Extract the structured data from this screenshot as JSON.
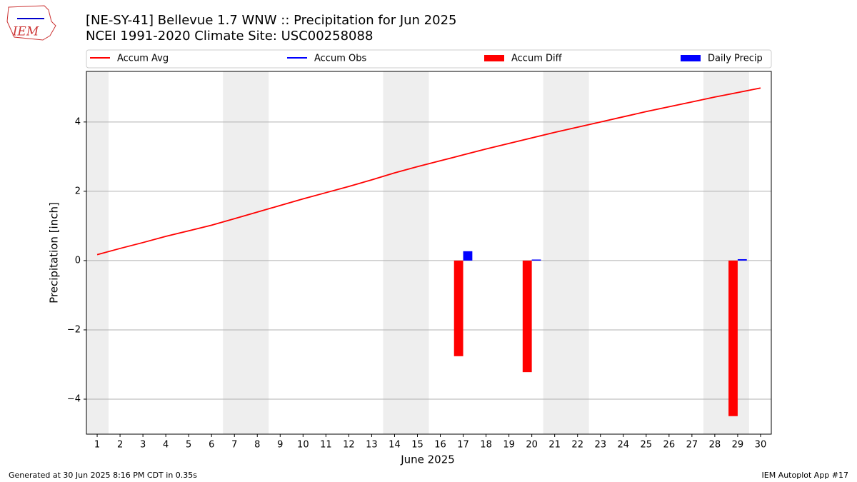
{
  "logo_text": "IEM",
  "chart_data": {
    "type": "line-bar",
    "title": "[NE-SY-41] Bellevue 1.7 WNW :: Precipitation for Jun 2025",
    "subtitle": "NCEI 1991-2020 Climate Site: USC00258088",
    "xlabel": "June 2025",
    "ylabel": "Precipitation [inch]",
    "x": [
      1,
      2,
      3,
      4,
      5,
      6,
      7,
      8,
      9,
      10,
      11,
      12,
      13,
      14,
      15,
      16,
      17,
      18,
      19,
      20,
      21,
      22,
      23,
      24,
      25,
      26,
      27,
      28,
      29,
      30
    ],
    "xlim": [
      0.53,
      30.47
    ],
    "xticks": [
      1,
      2,
      3,
      4,
      5,
      6,
      7,
      8,
      9,
      10,
      11,
      12,
      13,
      14,
      15,
      16,
      17,
      18,
      19,
      20,
      21,
      22,
      23,
      24,
      25,
      26,
      27,
      28,
      29,
      30
    ],
    "ylim": [
      -5.01,
      5.46
    ],
    "yticks": [
      {
        "value": -4,
        "label": "−4"
      },
      {
        "value": -2,
        "label": "−2"
      },
      0,
      2,
      4
    ],
    "grid": true,
    "shaded_spans": [
      [
        0.5,
        1.5
      ],
      [
        6.5,
        8.5
      ],
      [
        13.5,
        15.5
      ],
      [
        20.5,
        22.5
      ],
      [
        27.5,
        29.5
      ]
    ],
    "shade_color": "#eeeeee",
    "series": [
      {
        "name": "Accum Avg",
        "kind": "line",
        "color": "#ff0000",
        "values": [
          0.17,
          0.35,
          0.52,
          0.7,
          0.86,
          1.02,
          1.21,
          1.4,
          1.59,
          1.78,
          1.96,
          2.14,
          2.33,
          2.53,
          2.71,
          2.88,
          3.05,
          3.22,
          3.38,
          3.54,
          3.7,
          3.85,
          4.0,
          4.15,
          4.3,
          4.44,
          4.58,
          4.72,
          4.85,
          4.98
        ]
      },
      {
        "name": "Accum Obs",
        "kind": "line",
        "color": "#0000ff",
        "values": [
          null,
          null,
          null,
          null,
          null,
          null,
          null,
          null,
          null,
          null,
          null,
          null,
          null,
          null,
          null,
          null,
          null,
          null,
          null,
          null,
          null,
          null,
          null,
          null,
          null,
          null,
          null,
          null,
          null,
          null
        ]
      },
      {
        "name": "Accum Diff",
        "kind": "bar",
        "color": "#ff0000",
        "offset": -0.2,
        "width": 0.4,
        "values": [
          null,
          null,
          null,
          null,
          null,
          null,
          null,
          null,
          null,
          null,
          null,
          null,
          null,
          null,
          null,
          null,
          -2.76,
          null,
          null,
          -3.22,
          null,
          null,
          null,
          null,
          null,
          null,
          null,
          null,
          -4.49,
          null
        ]
      },
      {
        "name": "Daily Precip",
        "kind": "bar",
        "color": "#0000ff",
        "offset": 0.2,
        "width": 0.4,
        "values": [
          null,
          null,
          null,
          null,
          null,
          null,
          null,
          null,
          null,
          null,
          null,
          null,
          null,
          null,
          null,
          null,
          0.27,
          null,
          null,
          0.03,
          null,
          null,
          null,
          null,
          null,
          null,
          null,
          null,
          0.04,
          null
        ]
      }
    ],
    "footer_left": "Generated at 30 Jun 2025 8:16 PM CDT in 0.35s",
    "footer_right": "IEM Autoplot App #17"
  }
}
